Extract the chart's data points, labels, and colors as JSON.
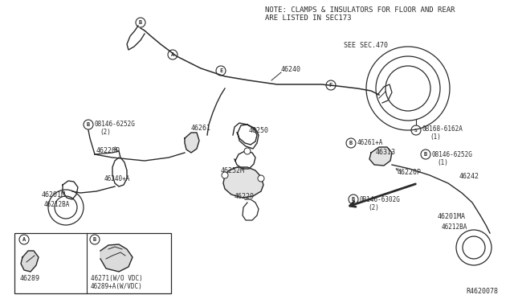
{
  "bg_color": "#ffffff",
  "line_color": "#2a2a2a",
  "text_color": "#2a2a2a",
  "note_line1": "NOTE: CLAMPS & INSULATORS FOR FLOOR AND REAR",
  "note_line2": "ARE LISTED IN SEC173",
  "see_sec": "SEE SEC.470",
  "revision": "R4620078",
  "fig_w": 6.4,
  "fig_h": 3.72,
  "dpi": 100
}
